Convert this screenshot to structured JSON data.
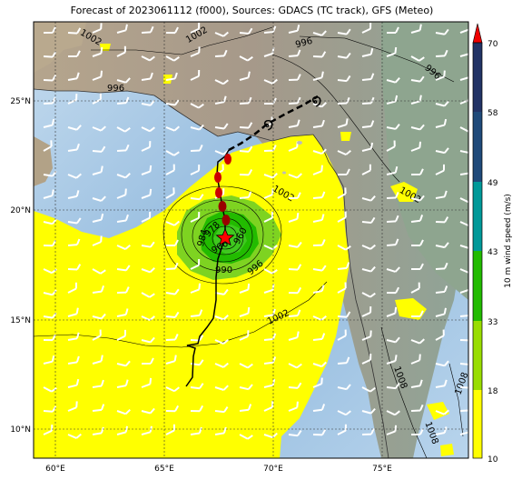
{
  "title": "Forecast of 2023061112 (f000), Sources: GDACS (TC track), GFS (Meteo)",
  "lon_ticks": [
    "60°E",
    "65°E",
    "70°E",
    "75°E"
  ],
  "lat_ticks": [
    "25°N",
    "20°N",
    "15°N",
    "10°N"
  ],
  "colorbar": {
    "label": "10 m wind speed (m/s)",
    "ticks": [
      "10",
      "18",
      "33",
      "43",
      "49",
      "58",
      "70"
    ],
    "colors": [
      "#ffff00",
      "#99dd00",
      "#22bb00",
      "#009999",
      "#1a6aa0",
      "#1f4a7a",
      "#223366",
      "#ee0000"
    ]
  },
  "isobar_labels": [
    "1002",
    "1002",
    "996",
    "996",
    "996",
    "1002",
    "1002",
    "1008",
    "1008",
    "1008",
    "1002",
    "996",
    "990",
    "984",
    "978",
    "966",
    "960"
  ],
  "map": {
    "land_color": "#a89c88",
    "sea_color": "#a8c8e8",
    "track_color": "#000000",
    "observed_point_color": "#cc0000",
    "current_position_color": "#ff0000"
  }
}
